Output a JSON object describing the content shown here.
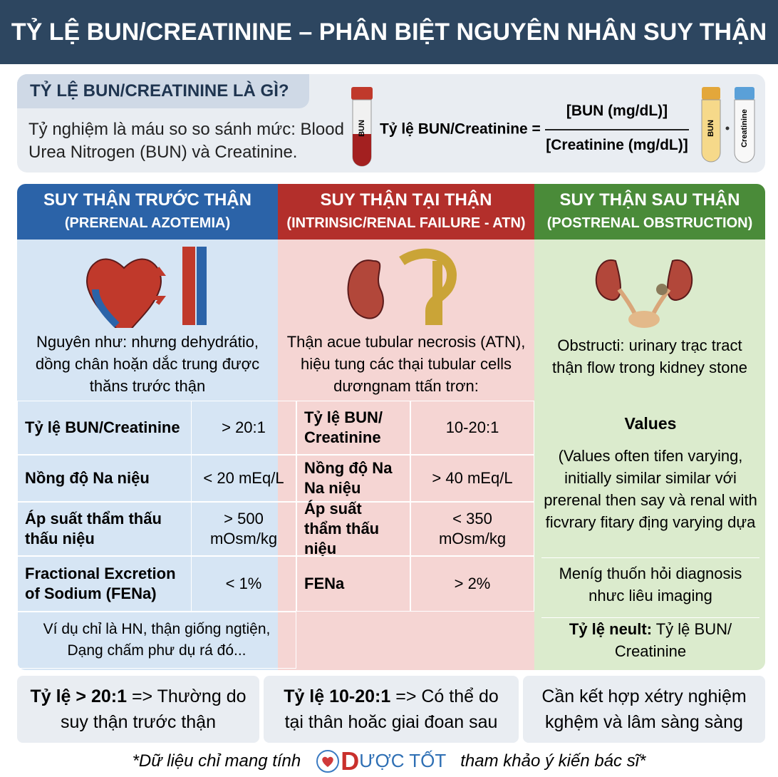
{
  "header": {
    "title": "TỶ LỆ BUN/CREATININE – PHÂN BIỆT NGUYÊN NHÂN SUY THẬN"
  },
  "intro": {
    "heading": "TỶ LỆ BUN/CREATININE LÀ GÌ?",
    "text": "Tỷ nghiệm là máu so so sánh mức: Blood Urea Nitrogen (BUN) và Creatinine.",
    "formula_label": "Tỷ lệ BUN/Creatinine =",
    "numerator": "[BUN (mg/dL)]",
    "denominator": "[Creatinine (mg/dL)]",
    "tube_labels": [
      "BUN",
      "BUN",
      "Creatinine"
    ]
  },
  "columns": [
    {
      "title": "SUY THẬN TRƯỚC THẬN",
      "subtitle": "(PRERENAL AZOTEMIA)",
      "description": "Nguyên như: nhưng dehydrátio, dồng chân hoặn dắc trung được thăns trước thận",
      "rows": [
        [
          "Tỷ lệ BUN/Creatinine",
          "> 20:1"
        ],
        [
          "Nồng độ Na niệu",
          "< 20 mEq/L"
        ],
        [
          "Áp suất thẩm thấu thấu niệu",
          "> 500 mOsm/kg"
        ],
        [
          "Fractional Excretion of Sodium (FENa)",
          "< 1%"
        ]
      ],
      "example": "Ví dụ chỉ là HN, thận giống ngtiện, Dạng chấm phư dụ rá đó..."
    },
    {
      "title": "SUY THẬN TẠI THẬN",
      "subtitle": "(INTRINSIC/RENAL FAILURE - ATN)",
      "description": "Thận acue tubular necrosis (ATN), hiệu tung các thại tubular cells dươngnam ttấn trơn:",
      "rows": [
        [
          "Tỷ lệ BUN/ Creatinine",
          "10-20:1"
        ],
        [
          "Nồng độ Na Na niệu",
          "> 40 mEq/L"
        ],
        [
          "Áp suất thẩm thấu niệu",
          "< 350 mOsm/kg"
        ],
        [
          "FENa",
          "> 2%"
        ]
      ]
    },
    {
      "title": "SUY THẬN SAU THẬN",
      "subtitle": "(POSTRENAL OBSTRUCTION)",
      "description": "Obstructi: urinary trạc tract thận flow trong kidney stone",
      "values_heading": "Values",
      "values_text": "(Values often tifen varying, initially similar similar với prerenal then say và renal with ficvrary fitary địng varying dựa",
      "diagnosis": "Meníg thuốn hỏi diagnosis nhưc liêu imaging",
      "result_label": "Tỷ lệ neult:",
      "result_text": "Tỷ lệ BUN/ Creatinine"
    }
  ],
  "summary": [
    {
      "bold": "Tỷ lệ > 20:1",
      "text": "=> Thường do suy thận trước thận"
    },
    {
      "bold": "Tỷ lệ 10-20:1",
      "text": "=> Có thể do tại thân hoăc giai đoan sau"
    },
    {
      "bold": "",
      "text": "Cần kết hợp xétry nghiệm kghệm và lâm sàng sàng"
    }
  ],
  "footer": {
    "note_left": "*Dữ liệu chỉ mang tính",
    "brand_initial": "D",
    "brand_rest": "ƯỢC TỐT",
    "note_right": "tham khảo ý kiến bác sĩ*"
  }
}
